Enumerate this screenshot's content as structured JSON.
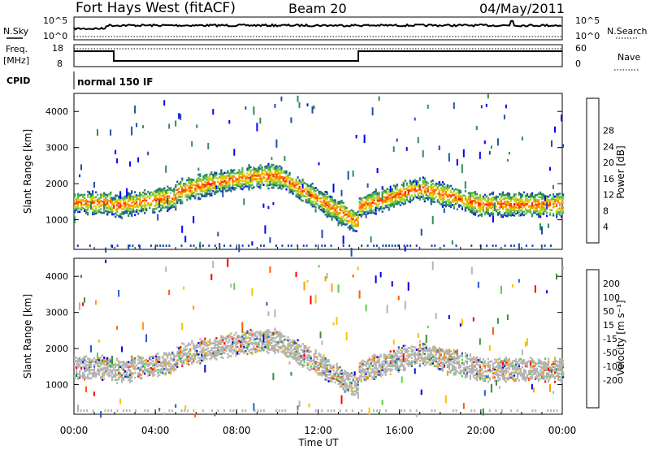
{
  "header": {
    "title": "Fort Hays West (fitACF)",
    "beam": "Beam 20",
    "date": "04/May/2011"
  },
  "params": {
    "nsky_label": "N.Sky",
    "nsearch_label": "N.Search",
    "freq_label": "Freq.",
    "freq_unit": "[MHz]",
    "nave_label": "Nave",
    "cpid_label": "CPID",
    "cpid_value": "normal 150 IF",
    "noise_ticks": [
      "10^5",
      "10^0"
    ],
    "freq_ticks": [
      "18",
      "8"
    ],
    "nave_ticks": [
      "60",
      "0"
    ]
  },
  "colors": {
    "power": [
      "#0000ff",
      "#1f4fa8",
      "#2e8b57",
      "#57b857",
      "#a8d428",
      "#f0c800",
      "#ff8c00",
      "#ff3c00",
      "#ff0000"
    ],
    "velocity": [
      "#ff0000",
      "#ff5a00",
      "#ff9a00",
      "#f4c400",
      "#b4b4b4",
      "#b4b4b4",
      "#55d044",
      "#3c8c3c",
      "#1f5fc8",
      "#0000d8"
    ]
  },
  "chart_data": [
    {
      "type": "heatmap",
      "name": "power",
      "ylabel": "Slant Range [km]",
      "y_ticks": [
        "1000",
        "2000",
        "3000",
        "4000"
      ],
      "ylim": [
        180,
        4500
      ],
      "colorbar_label": "Power [dB]",
      "colorbar_ticks": [
        "4",
        "8",
        "12",
        "16",
        "20",
        "24",
        "28"
      ],
      "scale": [
        0,
        32
      ]
    },
    {
      "type": "heatmap",
      "name": "velocity",
      "ylabel": "Slant Range [km]",
      "y_ticks": [
        "1000",
        "2000",
        "3000",
        "4000"
      ],
      "ylim": [
        180,
        4500
      ],
      "colorbar_label": "Velocity [m s⁻¹]",
      "colorbar_ticks": [
        "200",
        "100",
        "50",
        "15",
        "-15",
        "-50",
        "-100",
        "-200"
      ]
    }
  ],
  "x_axis": {
    "label": "Time UT",
    "ticks": [
      "00:00",
      "04:00",
      "08:00",
      "12:00",
      "16:00",
      "20:00",
      "00:00"
    ]
  }
}
